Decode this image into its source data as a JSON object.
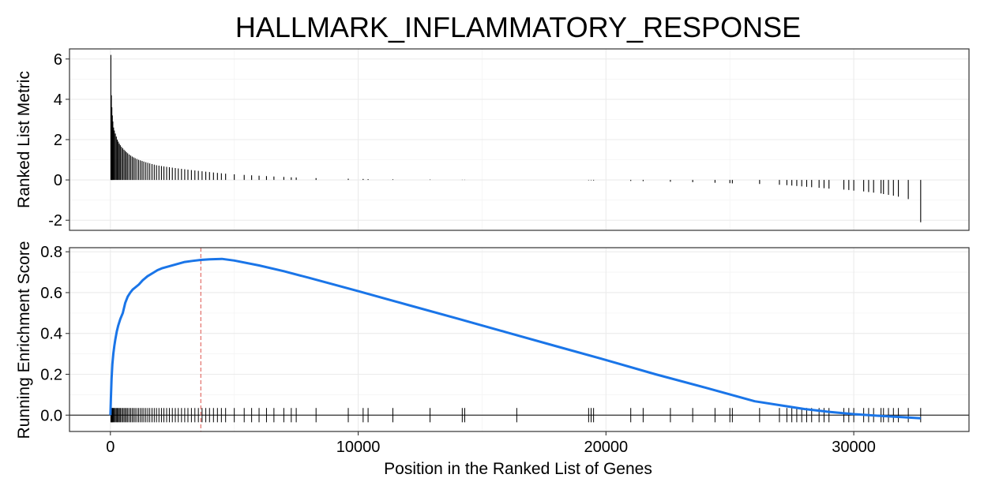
{
  "chart_data": [
    {
      "type": "bar",
      "title": "HALLMARK_INFLAMMATORY_RESPONSE",
      "xlabel": "",
      "ylabel": "Ranked List Metric",
      "xlim": [
        -1650,
        34650
      ],
      "ylim": [
        -2.5,
        6.5
      ],
      "yticks": [
        -2,
        0,
        2,
        4,
        6
      ],
      "grid": true,
      "series": [
        {
          "x": [
            20,
            40,
            60,
            80,
            100,
            130,
            160,
            200,
            240,
            280,
            320,
            360,
            400,
            450,
            500,
            550,
            600,
            650,
            700,
            760,
            820,
            880,
            940,
            1000,
            1070,
            1140,
            1210,
            1280,
            1350,
            1430,
            1510,
            1590,
            1680,
            1770,
            1860,
            1960,
            2060,
            2160,
            2270,
            2380,
            2500,
            2620,
            2740,
            2870,
            3000,
            3130,
            3270,
            3410,
            3550,
            3700,
            3850,
            4000,
            4160,
            4320,
            4480,
            4650,
            5000,
            5400,
            5700,
            6000,
            6300,
            6600,
            7000,
            7300,
            7500,
            8300,
            9600,
            10200,
            10400,
            11400,
            12900,
            14200,
            14300,
            16400,
            19300,
            19400,
            19500,
            21000,
            21500,
            22600,
            23500,
            24400,
            25000,
            25100,
            26200,
            27000,
            27300,
            27500,
            27700,
            27900,
            28100,
            28300,
            28600,
            28800,
            29000,
            29600,
            29800,
            30000,
            30400,
            30600,
            30800,
            31100,
            31200,
            31400,
            31600,
            31800,
            32200,
            32700
          ],
          "values": [
            6.2,
            4.2,
            3.6,
            3.2,
            2.9,
            2.6,
            2.45,
            2.3,
            2.15,
            2.0,
            1.9,
            1.8,
            1.72,
            1.64,
            1.57,
            1.5,
            1.44,
            1.38,
            1.32,
            1.26,
            1.21,
            1.16,
            1.12,
            1.08,
            1.04,
            1.0,
            0.97,
            0.94,
            0.91,
            0.88,
            0.85,
            0.82,
            0.79,
            0.76,
            0.73,
            0.71,
            0.69,
            0.67,
            0.65,
            0.63,
            0.61,
            0.59,
            0.57,
            0.55,
            0.53,
            0.51,
            0.49,
            0.47,
            0.45,
            0.43,
            0.41,
            0.39,
            0.37,
            0.35,
            0.33,
            0.31,
            0.28,
            0.25,
            0.23,
            0.21,
            0.19,
            0.17,
            0.15,
            0.13,
            0.12,
            0.09,
            0.06,
            0.05,
            0.04,
            0.03,
            0.02,
            0.01,
            0.01,
            0.0,
            -0.02,
            -0.02,
            -0.03,
            -0.05,
            -0.06,
            -0.09,
            -0.11,
            -0.14,
            -0.16,
            -0.17,
            -0.2,
            -0.24,
            -0.26,
            -0.28,
            -0.3,
            -0.32,
            -0.34,
            -0.36,
            -0.39,
            -0.41,
            -0.43,
            -0.48,
            -0.5,
            -0.53,
            -0.57,
            -0.6,
            -0.63,
            -0.67,
            -0.7,
            -0.74,
            -0.78,
            -0.83,
            -0.95,
            -2.1
          ],
          "color": "#000000"
        }
      ]
    },
    {
      "type": "line",
      "xlabel": "Position in the Ranked List of Genes",
      "ylabel": "Running Enrichment Score",
      "xlim": [
        -1650,
        34650
      ],
      "ylim": [
        -0.08,
        0.82
      ],
      "xticks": [
        0,
        10000,
        20000,
        30000
      ],
      "yticks": [
        0.0,
        0.2,
        0.4,
        0.6,
        0.8
      ],
      "grid": true,
      "series": [
        {
          "x": [
            0,
            20,
            50,
            80,
            120,
            160,
            200,
            260,
            320,
            400,
            500,
            600,
            700,
            800,
            900,
            1000,
            1150,
            1300,
            1500,
            1700,
            1900,
            2100,
            2400,
            2700,
            3000,
            3300,
            3650,
            4000,
            4500,
            5000,
            6000,
            7000,
            8000,
            9000,
            10000,
            12000,
            14000,
            16000,
            18000,
            20000,
            22000,
            24000,
            26000,
            28000,
            29000,
            30000,
            31000,
            32000,
            32700
          ],
          "values": [
            0.0,
            0.08,
            0.18,
            0.25,
            0.3,
            0.34,
            0.37,
            0.41,
            0.44,
            0.47,
            0.5,
            0.55,
            0.58,
            0.6,
            0.615,
            0.625,
            0.64,
            0.66,
            0.68,
            0.695,
            0.71,
            0.72,
            0.73,
            0.74,
            0.75,
            0.755,
            0.76,
            0.763,
            0.765,
            0.757,
            0.733,
            0.705,
            0.673,
            0.64,
            0.607,
            0.54,
            0.473,
            0.405,
            0.337,
            0.27,
            0.2,
            0.135,
            0.068,
            0.03,
            0.016,
            0.005,
            -0.003,
            -0.01,
            -0.015
          ],
          "color": "#1a75e8"
        }
      ],
      "hits": [
        20,
        40,
        60,
        80,
        100,
        130,
        160,
        200,
        240,
        280,
        320,
        360,
        400,
        450,
        500,
        550,
        600,
        650,
        700,
        760,
        820,
        880,
        940,
        1000,
        1070,
        1140,
        1210,
        1280,
        1350,
        1430,
        1510,
        1590,
        1680,
        1770,
        1860,
        1960,
        2060,
        2160,
        2270,
        2380,
        2500,
        2620,
        2740,
        2870,
        3000,
        3130,
        3270,
        3410,
        3550,
        3700,
        3850,
        4000,
        4160,
        4320,
        4480,
        4650,
        5000,
        5400,
        5700,
        6000,
        6300,
        6600,
        7000,
        7300,
        7500,
        8300,
        9600,
        10200,
        10400,
        11400,
        12900,
        14200,
        14300,
        16400,
        19300,
        19400,
        19500,
        21000,
        21500,
        22600,
        23500,
        24400,
        25000,
        25100,
        26200,
        27000,
        27300,
        27500,
        27700,
        27900,
        28100,
        28300,
        28600,
        28800,
        29000,
        29600,
        29800,
        30000,
        30400,
        30600,
        30800,
        31100,
        31200,
        31400,
        31600,
        31800,
        32200,
        32700
      ],
      "max_es_position": 3650,
      "max_es_line_color": "#e0605a",
      "baseline": 0
    }
  ]
}
